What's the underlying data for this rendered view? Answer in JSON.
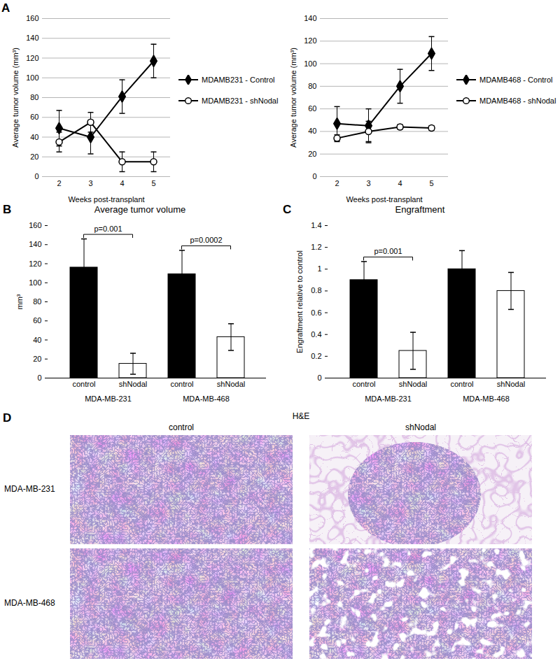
{
  "chart_data": [
    {
      "panel": "A",
      "type": "line",
      "x_label": "Weeks post-transplant",
      "y_label": "Average tumor volume (mm³)",
      "categories": [
        "2",
        "3",
        "4",
        "5"
      ],
      "ylim": [
        0,
        160
      ],
      "yticks": [
        0,
        20,
        40,
        60,
        80,
        100,
        120,
        140,
        160
      ],
      "grid": true,
      "legend": "right",
      "series": [
        {
          "name": "MDAMB231 - Control",
          "color": "#000000",
          "marker": "diamond",
          "values": [
            49,
            40,
            81,
            117
          ],
          "errors": [
            18,
            17,
            17,
            17
          ]
        },
        {
          "name": "MDAMB231 - shNodal",
          "color": "#000000",
          "marker": "open_circle",
          "values": [
            35,
            55,
            15,
            15
          ],
          "errors": [
            10,
            10,
            10,
            10
          ]
        }
      ]
    },
    {
      "type": "line",
      "x_label": "Weeks post-transplant",
      "y_label": "Average tumor volume (mm³)",
      "categories": [
        "2",
        "3",
        "4",
        "5"
      ],
      "ylim": [
        0,
        140
      ],
      "yticks": [
        0,
        20,
        40,
        60,
        80,
        100,
        120,
        140
      ],
      "grid": true,
      "legend": "right",
      "series": [
        {
          "name": "MDAMB468 - Control",
          "color": "#000000",
          "marker": "diamond",
          "values": [
            47,
            45,
            80,
            109
          ],
          "errors": [
            15,
            15,
            15,
            15
          ]
        },
        {
          "name": "MDAMB468 - shNodal",
          "color": "#000000",
          "marker": "open_circle",
          "values": [
            34,
            40,
            44,
            43
          ],
          "errors": [
            3,
            9,
            2,
            2
          ]
        }
      ]
    },
    {
      "panel": "B",
      "type": "bar",
      "title": "Average tumor volume",
      "y_label": "mm³",
      "categories": [
        "control",
        "shNodal",
        "control",
        "shNodal"
      ],
      "groups": [
        "MDA-MB-231",
        "MDA-MB-468"
      ],
      "values": [
        116,
        15,
        109,
        43
      ],
      "errors": [
        30,
        11,
        25,
        14
      ],
      "colors": [
        "#000000",
        "#ffffff",
        "#000000",
        "#ffffff"
      ],
      "ylim": [
        0,
        160
      ],
      "yticks": [
        0,
        20,
        40,
        60,
        80,
        100,
        120,
        140,
        160
      ],
      "annotations": [
        {
          "text": "p=0.001",
          "group": "MDA-MB-231"
        },
        {
          "text": "p=0.0002",
          "group": "MDA-MB-468"
        }
      ]
    },
    {
      "panel": "C",
      "type": "bar",
      "title": "Engraftment",
      "y_label": "Engraftment relative to control",
      "categories": [
        "control",
        "shNodal",
        "control",
        "shNodal"
      ],
      "groups": [
        "MDA-MB-231",
        "MDA-MB-468"
      ],
      "values": [
        0.9,
        0.25,
        1.0,
        0.8
      ],
      "errors": [
        0.17,
        0.17,
        0.17,
        0.17
      ],
      "colors": [
        "#000000",
        "#ffffff",
        "#000000",
        "#ffffff"
      ],
      "ylim": [
        0,
        1.4
      ],
      "yticks": [
        0,
        0.2,
        0.4,
        0.6,
        0.8,
        1,
        1.2,
        1.4
      ],
      "annotations": [
        {
          "text": "p=0.001",
          "group": "MDA-MB-231"
        }
      ]
    }
  ],
  "image_panel": {
    "panel": "D",
    "title": "H&E",
    "columns": [
      "control",
      "shNodal"
    ],
    "rows": [
      "MDA-MB-231",
      "MDA-MB-468"
    ]
  }
}
